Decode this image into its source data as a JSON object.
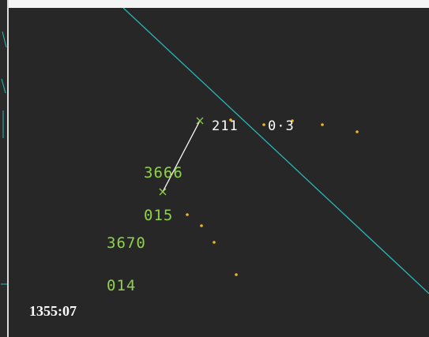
{
  "display": {
    "background_color": "#272727",
    "boundary_color": "#2bb6b6",
    "target_color": "#8fd24a",
    "history_color": "#f0b429",
    "measure_color": "#ffffff"
  },
  "targets": [
    {
      "beacon_code": "3666",
      "altitude": "015"
    },
    {
      "beacon_code": "3670",
      "altitude": "014"
    }
  ],
  "range_bearing": {
    "bearing": "211",
    "distance": "0·3"
  },
  "clock": {
    "time": "1355:07"
  }
}
